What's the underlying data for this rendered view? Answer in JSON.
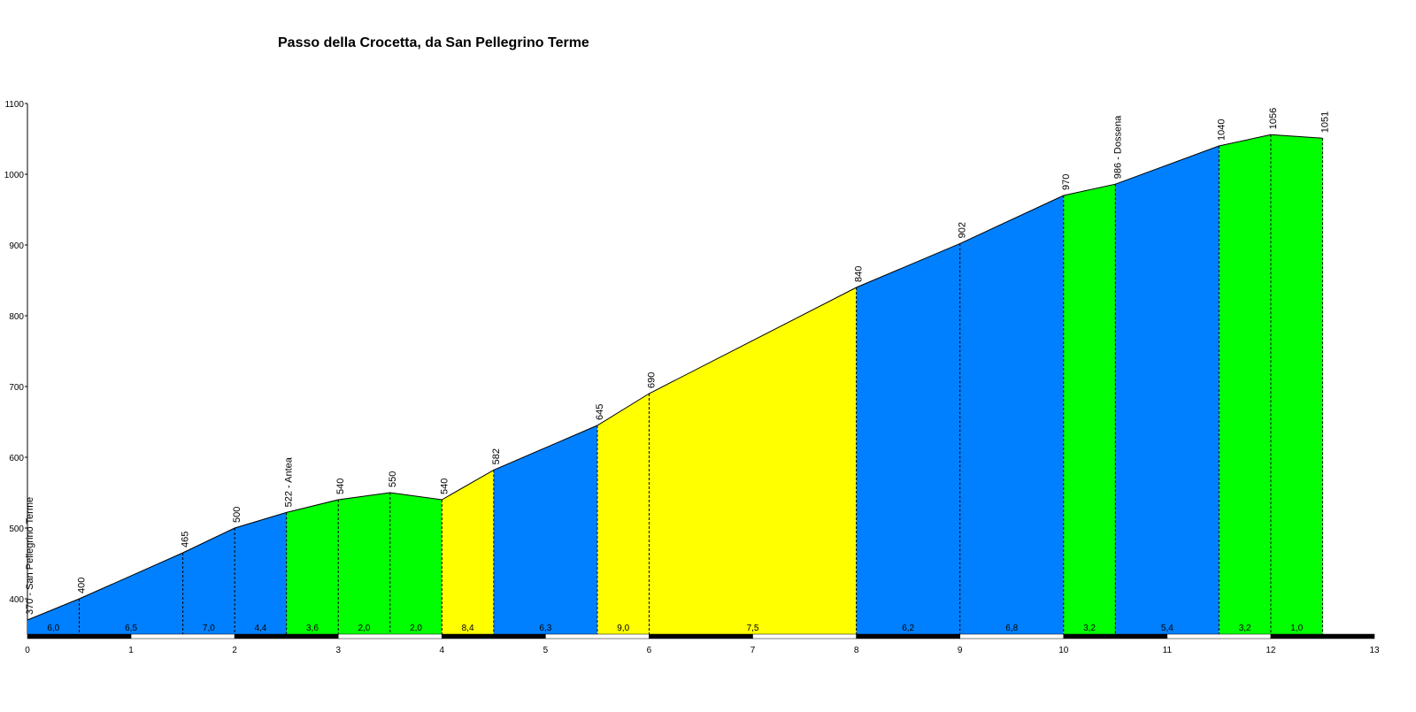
{
  "chart_data": {
    "type": "area",
    "title": "Passo della Crocetta, da San Pellegrino Terme",
    "x": [
      0,
      0.5,
      1.5,
      2,
      2.5,
      3,
      3.5,
      4,
      4.5,
      5.5,
      6,
      8,
      9,
      10,
      10.5,
      11.5,
      12,
      12.5
    ],
    "values": [
      370,
      400,
      465,
      500,
      522,
      540,
      550,
      540,
      582,
      645,
      690,
      840,
      902,
      970,
      986,
      1040,
      1056,
      1051
    ],
    "value_labels": [
      "370 - San Pellegrino Terme",
      "400",
      "465",
      "500",
      "522 - Antea",
      "540",
      "550",
      "540",
      "582",
      "645",
      "690",
      "840",
      "902",
      "970",
      "986 - Dossena",
      "1040",
      "1056",
      "1051"
    ],
    "segments": {
      "values": [
        6.0,
        6.5,
        7.0,
        4.4,
        3.6,
        2.0,
        2.0,
        8.4,
        6.3,
        9.0,
        7.5,
        6.2,
        6.8,
        3.2,
        5.4,
        3.2,
        1.0
      ],
      "value_labels": [
        "6,0",
        "6,5",
        "7,0",
        "4,4",
        "3,6",
        "2,0",
        "2,0",
        "8,4",
        "6,3",
        "9,0",
        "7,5",
        "6,2",
        "6,8",
        "3,2",
        "5,4",
        "3,2",
        "1,0"
      ],
      "colors": [
        "#0080ff",
        "#0080ff",
        "#0080ff",
        "#0080ff",
        "#00ff00",
        "#00ff00",
        "#00ff00",
        "#ffff00",
        "#0080ff",
        "#ffff00",
        "#ffff00",
        "#0080ff",
        "#0080ff",
        "#00ff00",
        "#0080ff",
        "#00ff00",
        "#00ff00"
      ]
    },
    "xlim": [
      0,
      13
    ],
    "ylim": [
      350,
      1100
    ],
    "xticks": [
      0,
      1,
      2,
      3,
      4,
      5,
      6,
      7,
      8,
      9,
      10,
      11,
      12,
      13
    ],
    "yticks": [
      400,
      500,
      600,
      700,
      800,
      900,
      1000,
      1100
    ]
  }
}
